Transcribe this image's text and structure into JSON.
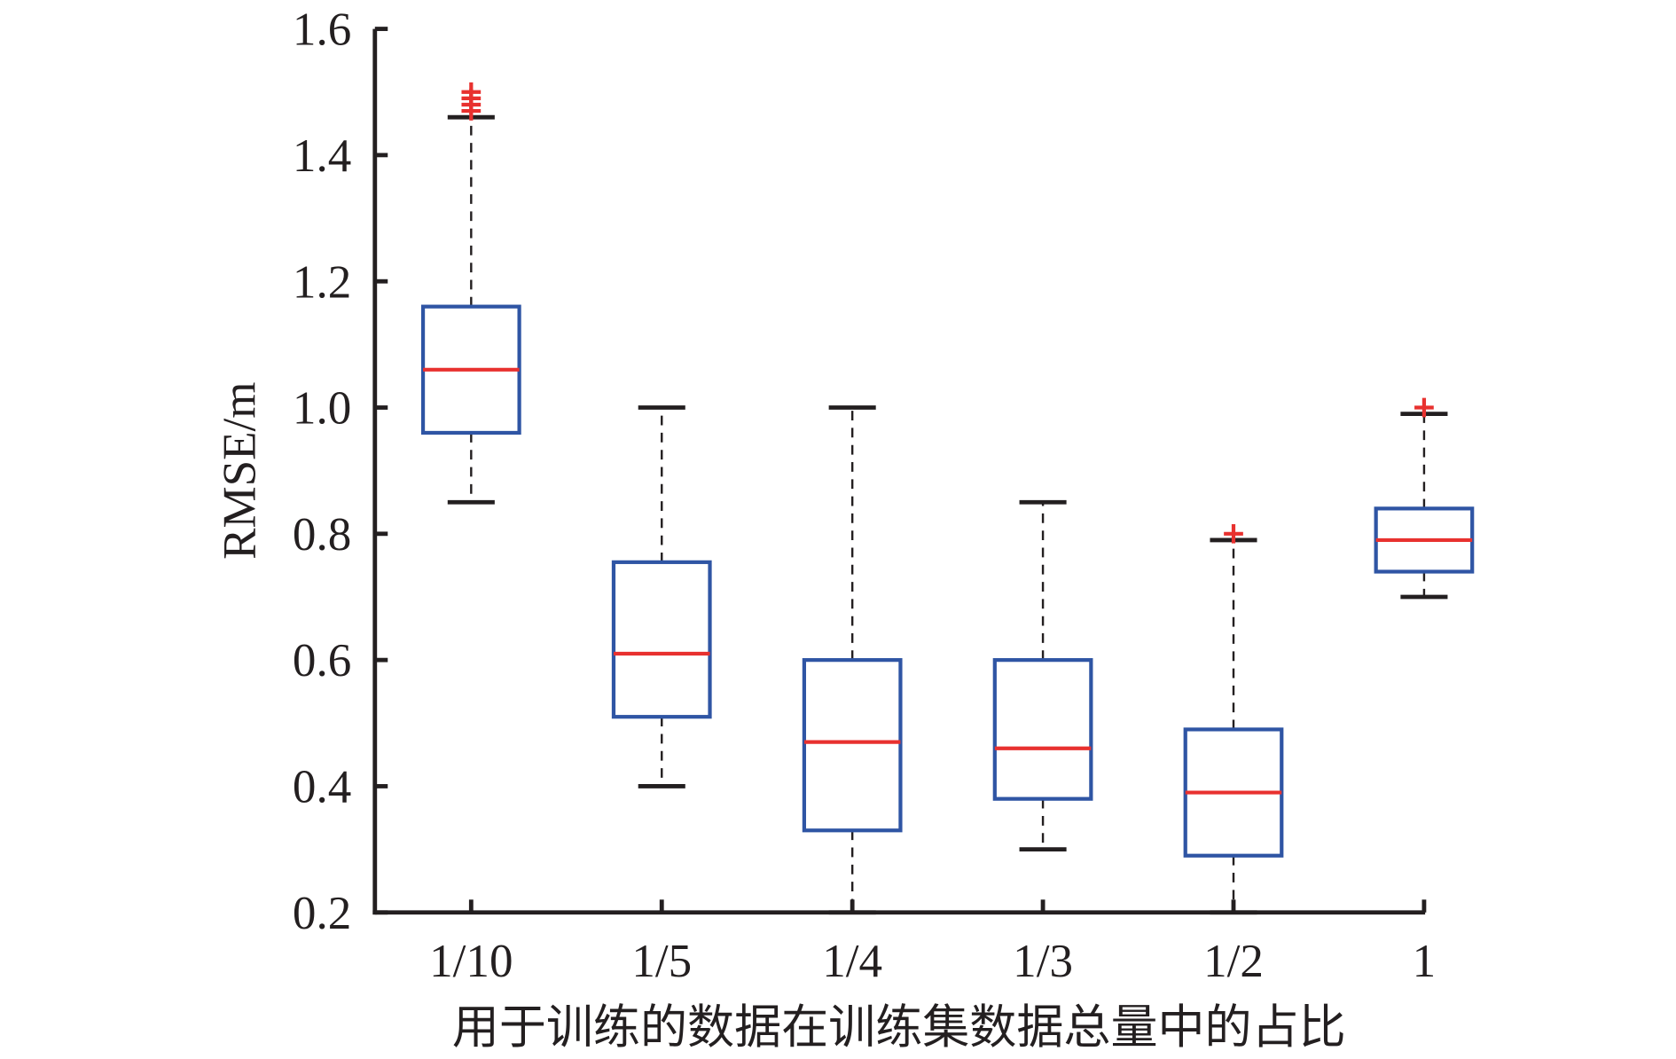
{
  "chart_data": {
    "type": "box",
    "title": "",
    "xlabel": "用于训练的数据在训练集数据总量中的占比",
    "ylabel": "RMSE/m",
    "ylim": [
      0.2,
      1.6
    ],
    "yticks": [
      "0.2",
      "0.4",
      "0.6",
      "0.8",
      "1.0",
      "1.2",
      "1.4",
      "1.6"
    ],
    "ytick_values": [
      0.2,
      0.4,
      0.6,
      0.8,
      1.0,
      1.2,
      1.4,
      1.6
    ],
    "categories": [
      "1/10",
      "1/5",
      "1/4",
      "1/3",
      "1/2",
      "1"
    ],
    "boxes": [
      {
        "category": "1/10",
        "whisker_low": 0.85,
        "q1": 0.96,
        "median": 1.06,
        "q3": 1.16,
        "whisker_high": 1.46,
        "outliers": [
          1.47,
          1.48,
          1.49,
          1.5
        ]
      },
      {
        "category": "1/5",
        "whisker_low": 0.4,
        "q1": 0.51,
        "median": 0.61,
        "q3": 0.755,
        "whisker_high": 1.0,
        "outliers": []
      },
      {
        "category": "1/4",
        "whisker_low": 0.2,
        "q1": 0.33,
        "median": 0.47,
        "q3": 0.6,
        "whisker_high": 1.0,
        "outliers": []
      },
      {
        "category": "1/3",
        "whisker_low": 0.3,
        "q1": 0.38,
        "median": 0.46,
        "q3": 0.6,
        "whisker_high": 0.85,
        "outliers": []
      },
      {
        "category": "1/2",
        "whisker_low": 0.2,
        "q1": 0.29,
        "median": 0.39,
        "q3": 0.49,
        "whisker_high": 0.79,
        "outliers": [
          0.8
        ]
      },
      {
        "category": "1",
        "whisker_low": 0.7,
        "q1": 0.74,
        "median": 0.79,
        "q3": 0.84,
        "whisker_high": 0.99,
        "outliers": [
          1.0
        ]
      }
    ],
    "colors": {
      "box": "#2f55a4",
      "median": "#e8312f",
      "outlier": "#e8312f",
      "whisker": "#231f20",
      "axis": "#231f20"
    },
    "grid": false,
    "legend": "none"
  }
}
